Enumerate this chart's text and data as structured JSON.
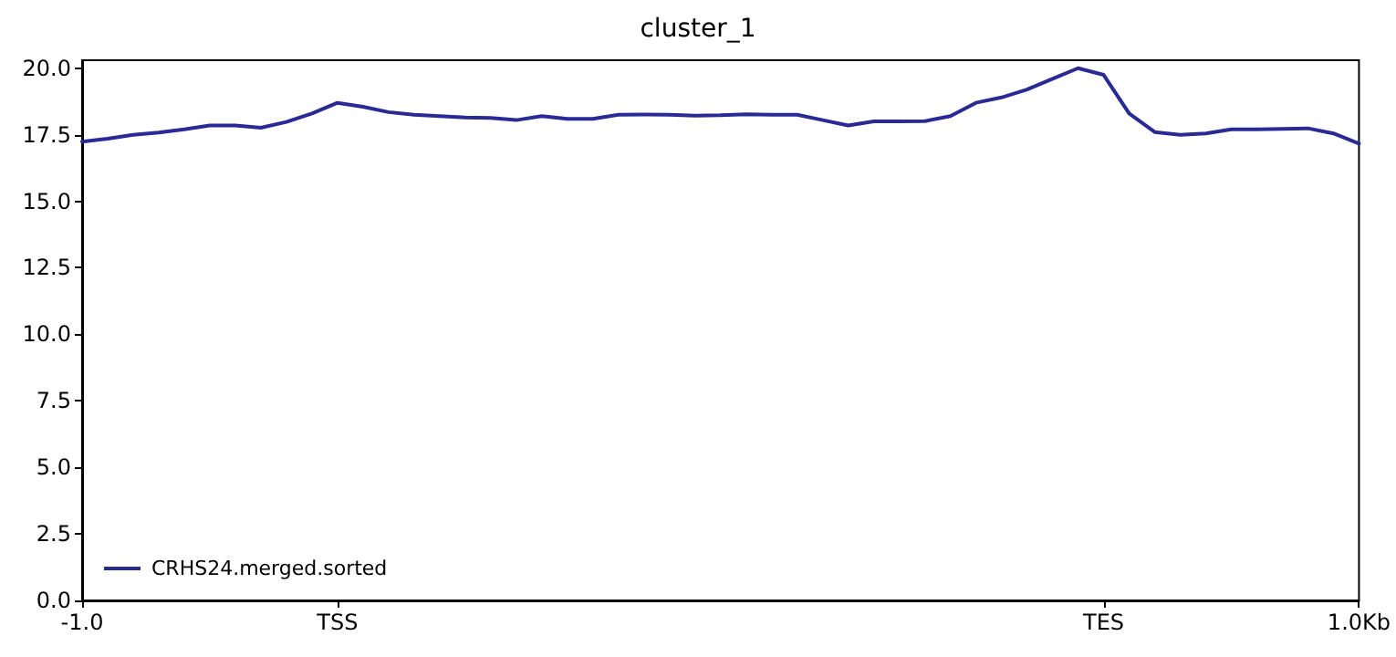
{
  "chart_data": {
    "type": "line",
    "title": "cluster_1",
    "categories": [
      "-1.0",
      null,
      null,
      null,
      null,
      null,
      null,
      null,
      null,
      null,
      "TSS",
      null,
      null,
      null,
      null,
      null,
      null,
      null,
      null,
      null,
      null,
      null,
      null,
      null,
      null,
      null,
      null,
      null,
      null,
      null,
      null,
      null,
      null,
      null,
      null,
      null,
      null,
      null,
      null,
      null,
      "TES",
      null,
      null,
      null,
      null,
      null,
      null,
      null,
      null,
      null,
      "1.0Kb"
    ],
    "series": [
      {
        "name": "CRHS24.merged.sorted",
        "color": "#2a2a96",
        "values": [
          17.24,
          17.35,
          17.5,
          17.58,
          17.7,
          17.85,
          17.85,
          17.76,
          17.98,
          18.3,
          18.7,
          18.55,
          18.35,
          18.25,
          18.2,
          18.15,
          18.13,
          18.05,
          18.2,
          18.1,
          18.1,
          18.25,
          18.26,
          18.25,
          18.22,
          18.23,
          18.27,
          18.25,
          18.25,
          18.05,
          17.85,
          18.0,
          18.0,
          18.01,
          18.2,
          18.7,
          18.9,
          19.2,
          19.6,
          20.0,
          19.75,
          18.3,
          17.6,
          17.5,
          17.55,
          17.7,
          17.7,
          17.72,
          17.74,
          17.55,
          17.17
        ]
      }
    ],
    "ylim": [
      0,
      20.3
    ],
    "yticks": [
      {
        "value": 0,
        "label": "0.0"
      },
      {
        "value": 2.5,
        "label": "2.5"
      },
      {
        "value": 5,
        "label": "5.0"
      },
      {
        "value": 7.5,
        "label": "7.5"
      },
      {
        "value": 10,
        "label": "10.0"
      },
      {
        "value": 12.5,
        "label": "12.5"
      },
      {
        "value": 15,
        "label": "15.0"
      },
      {
        "value": 17.5,
        "label": "17.5"
      },
      {
        "value": 20,
        "label": "20.0"
      }
    ],
    "grid": false,
    "legend": "bottom left",
    "marker": "none",
    "line_style": "solid"
  }
}
